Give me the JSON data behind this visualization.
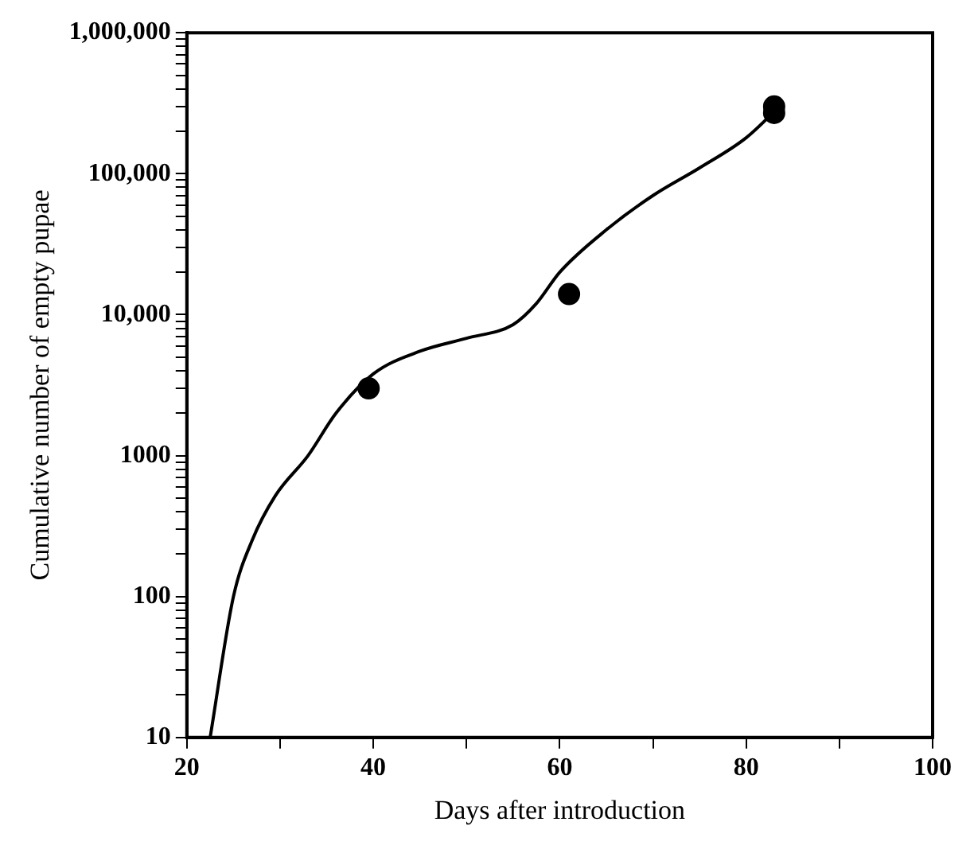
{
  "chart_data": {
    "type": "scatter",
    "xlabel": "Days after introduction",
    "ylabel": "Cumulative number of empty pupae",
    "log": "y",
    "grid": false,
    "legend": false,
    "xlim": [
      20,
      100
    ],
    "xticks": [
      20,
      {
        "value": 30,
        "label": null
      },
      40,
      {
        "value": 50,
        "label": null
      },
      60,
      {
        "value": 70,
        "label": null
      },
      80,
      {
        "value": 90,
        "label": null
      },
      100
    ],
    "ylim": [
      10,
      1000000
    ],
    "yticks": [
      10,
      {
        "value": 20,
        "label": null
      },
      {
        "value": 30,
        "label": null
      },
      {
        "value": 40,
        "label": null
      },
      {
        "value": 50,
        "label": null
      },
      {
        "value": 60,
        "label": null
      },
      {
        "value": 70,
        "label": null
      },
      {
        "value": 80,
        "label": null
      },
      {
        "value": 90,
        "label": null
      },
      100,
      {
        "value": 200,
        "label": null
      },
      {
        "value": 300,
        "label": null
      },
      {
        "value": 400,
        "label": null
      },
      {
        "value": 500,
        "label": null
      },
      {
        "value": 600,
        "label": null
      },
      {
        "value": 700,
        "label": null
      },
      {
        "value": 800,
        "label": null
      },
      {
        "value": 900,
        "label": null
      },
      1000,
      {
        "value": 2000,
        "label": null
      },
      {
        "value": 3000,
        "label": null
      },
      {
        "value": 4000,
        "label": null
      },
      {
        "value": 5000,
        "label": null
      },
      {
        "value": 6000,
        "label": null
      },
      {
        "value": 7000,
        "label": null
      },
      {
        "value": 8000,
        "label": null
      },
      {
        "value": 9000,
        "label": null
      },
      {
        "value": 10000,
        "label": "10,000"
      },
      {
        "value": 20000,
        "label": null
      },
      {
        "value": 30000,
        "label": null
      },
      {
        "value": 40000,
        "label": null
      },
      {
        "value": 50000,
        "label": null
      },
      {
        "value": 60000,
        "label": null
      },
      {
        "value": 70000,
        "label": null
      },
      {
        "value": 80000,
        "label": null
      },
      {
        "value": 90000,
        "label": null
      },
      {
        "value": 100000,
        "label": "100,000"
      },
      {
        "value": 200000,
        "label": null
      },
      {
        "value": 300000,
        "label": null
      },
      {
        "value": 400000,
        "label": null
      },
      {
        "value": 500000,
        "label": null
      },
      {
        "value": 600000,
        "label": null
      },
      {
        "value": 700000,
        "label": null
      },
      {
        "value": 800000,
        "label": null
      },
      {
        "value": 900000,
        "label": null
      },
      {
        "value": 1000000,
        "label": "1,000,000"
      }
    ],
    "series": [
      {
        "color": "#000000",
        "marker": "circle",
        "x": [
          39.5,
          61,
          83,
          83
        ],
        "values": [
          3000,
          14000,
          300000,
          270000
        ]
      },
      {
        "type": "line",
        "color": "#000000",
        "marker": "none",
        "line_style": "solid",
        "x": [
          22.5,
          25,
          27,
          29.5,
          33,
          36,
          40,
          45,
          50,
          55,
          57.5,
          60,
          65,
          70,
          75,
          80,
          84
        ],
        "values": [
          10,
          100,
          250,
          520,
          1000,
          2000,
          3800,
          5500,
          6800,
          8500,
          12000,
          20000,
          40000,
          70000,
          110000,
          180000,
          320000
        ]
      }
    ]
  }
}
